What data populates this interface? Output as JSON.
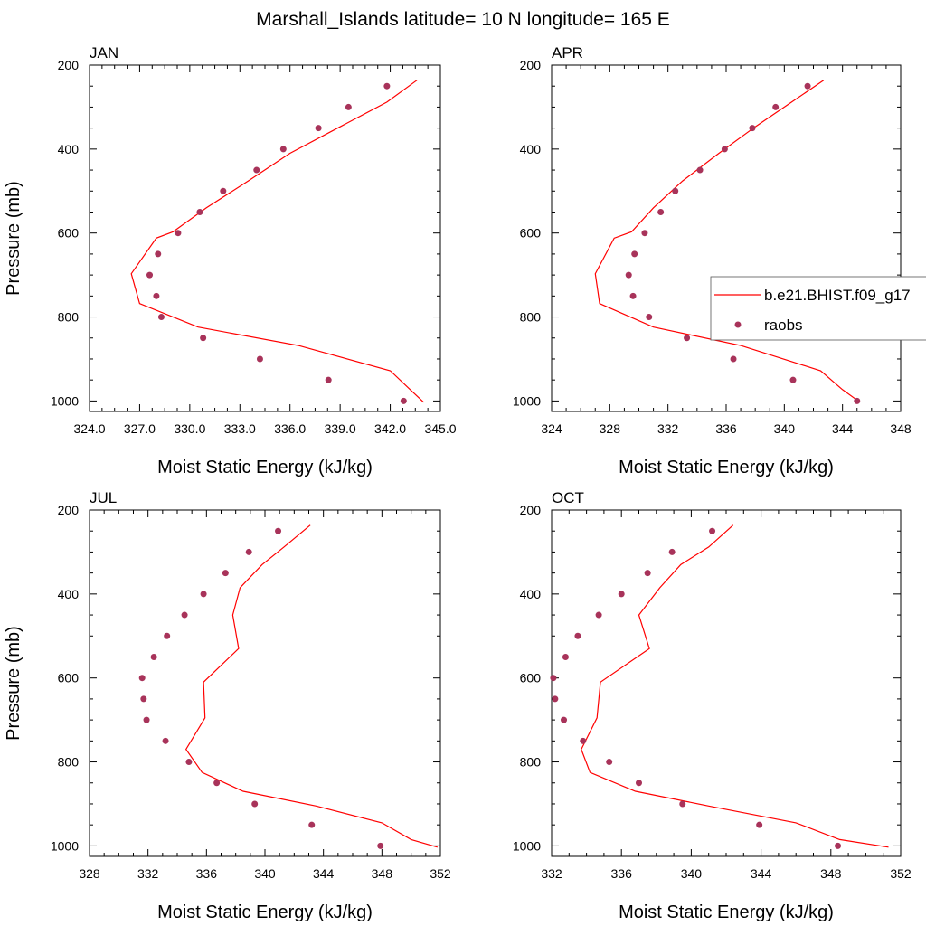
{
  "title": "Marshall_Islands  latitude= 10 N longitude= 165 E",
  "chart_data": [
    {
      "type": "line",
      "panel": "JAN",
      "xlabel": "Moist Static Energy (kJ/kg)",
      "ylabel": "Pressure (mb)",
      "xlim": [
        324,
        345
      ],
      "ylim": [
        1025,
        200
      ],
      "xticks": [
        324,
        327,
        330,
        333,
        336,
        339,
        342,
        345
      ],
      "xtick_labels": [
        "324.0",
        "327.0",
        "330.0",
        "333.0",
        "336.0",
        "339.0",
        "342.0",
        "345.0"
      ],
      "yticks": [
        200,
        400,
        600,
        800,
        1000
      ],
      "ytick_labels": [
        "200",
        "400",
        "600",
        "800",
        "1000"
      ],
      "model": {
        "x": [
          343.6,
          341.8,
          339.0,
          336.0,
          333.5,
          331.0,
          329.0,
          328.0,
          326.5,
          327.0,
          330.5,
          336.5,
          342.0,
          343.2,
          344.0
        ],
        "p": [
          236,
          288,
          347,
          410,
          476,
          540,
          597,
          612,
          697,
          768,
          824,
          868,
          928,
          973,
          1003
        ]
      },
      "raobs": {
        "x": [
          341.8,
          339.5,
          337.7,
          335.6,
          334.0,
          332.0,
          330.6,
          329.3,
          328.1,
          327.6,
          328.0,
          328.3,
          330.8,
          334.2,
          338.3,
          342.8
        ],
        "p": [
          250,
          300,
          350,
          400,
          450,
          500,
          550,
          600,
          650,
          700,
          750,
          800,
          850,
          900,
          950,
          1000
        ]
      },
      "legend": false
    },
    {
      "type": "line",
      "panel": "APR",
      "xlabel": "Moist Static Energy (kJ/kg)",
      "ylabel": "",
      "xlim": [
        324,
        348
      ],
      "ylim": [
        1025,
        200
      ],
      "xticks": [
        324,
        328,
        332,
        336,
        340,
        344,
        348
      ],
      "xtick_labels": [
        "324",
        "328",
        "332",
        "336",
        "340",
        "344",
        "348"
      ],
      "yticks": [
        200,
        400,
        600,
        800,
        1000
      ],
      "ytick_labels": [
        "200",
        "400",
        "600",
        "800",
        "1000"
      ],
      "model": {
        "x": [
          342.7,
          340.5,
          338.0,
          335.5,
          333.0,
          331.0,
          329.5,
          328.3,
          327.0,
          327.3,
          331.0,
          337.0,
          342.5,
          344.0,
          345.2
        ],
        "p": [
          236,
          288,
          347,
          410,
          476,
          540,
          597,
          612,
          697,
          768,
          824,
          868,
          928,
          973,
          1003
        ]
      },
      "raobs": {
        "x": [
          341.6,
          339.4,
          337.8,
          335.9,
          334.2,
          332.5,
          331.5,
          330.4,
          329.7,
          329.3,
          329.6,
          330.7,
          333.3,
          336.5,
          340.6,
          345.0
        ],
        "p": [
          250,
          300,
          350,
          400,
          450,
          500,
          550,
          600,
          650,
          700,
          750,
          800,
          850,
          900,
          950,
          1000
        ]
      },
      "legend": true
    },
    {
      "type": "line",
      "panel": "JUL",
      "xlabel": "Moist Static Energy (kJ/kg)",
      "ylabel": "Pressure (mb)",
      "xlim": [
        328,
        352
      ],
      "ylim": [
        1025,
        200
      ],
      "xticks": [
        328,
        332,
        336,
        340,
        344,
        348,
        352
      ],
      "xtick_labels": [
        "328",
        "332",
        "336",
        "340",
        "344",
        "348",
        "352"
      ],
      "yticks": [
        200,
        400,
        600,
        800,
        1000
      ],
      "ytick_labels": [
        "200",
        "400",
        "600",
        "800",
        "1000"
      ],
      "model": {
        "x": [
          343.1,
          341.3,
          339.8,
          338.3,
          337.8,
          338.2,
          335.8,
          335.9,
          334.6,
          335.7,
          338.5,
          343.5,
          348.0,
          350.0,
          351.8
        ],
        "p": [
          236,
          288,
          330,
          385,
          450,
          530,
          610,
          695,
          770,
          825,
          870,
          905,
          945,
          985,
          1003
        ]
      },
      "raobs": {
        "x": [
          340.9,
          338.9,
          337.3,
          335.8,
          334.5,
          333.3,
          332.4,
          331.6,
          331.7,
          331.9,
          333.2,
          334.8,
          336.7,
          339.3,
          343.2,
          347.9
        ],
        "p": [
          250,
          300,
          350,
          400,
          450,
          500,
          550,
          600,
          650,
          700,
          750,
          800,
          850,
          900,
          950,
          1000
        ]
      },
      "legend": false
    },
    {
      "type": "line",
      "panel": "OCT",
      "xlabel": "Moist Static Energy (kJ/kg)",
      "ylabel": "",
      "xlim": [
        332,
        352
      ],
      "ylim": [
        1025,
        200
      ],
      "xticks": [
        332,
        336,
        340,
        344,
        348,
        352
      ],
      "xtick_labels": [
        "332",
        "336",
        "340",
        "344",
        "348",
        "352"
      ],
      "yticks": [
        200,
        400,
        600,
        800,
        1000
      ],
      "ytick_labels": [
        "200",
        "400",
        "600",
        "800",
        "1000"
      ],
      "model": {
        "x": [
          342.4,
          341.0,
          339.4,
          338.2,
          337.0,
          337.6,
          334.8,
          334.6,
          333.7,
          334.2,
          336.8,
          341.0,
          346.0,
          348.5,
          351.3
        ],
        "p": [
          236,
          288,
          330,
          385,
          450,
          530,
          610,
          695,
          770,
          825,
          870,
          905,
          945,
          985,
          1003
        ]
      },
      "raobs": {
        "x": [
          341.2,
          338.9,
          337.5,
          336.0,
          334.7,
          333.5,
          332.8,
          332.1,
          332.2,
          332.7,
          333.8,
          335.3,
          337.0,
          339.5,
          343.9,
          348.4
        ],
        "p": [
          250,
          300,
          350,
          400,
          450,
          500,
          550,
          600,
          650,
          700,
          750,
          800,
          850,
          900,
          950,
          1000
        ]
      },
      "legend": false
    }
  ],
  "legend": {
    "entries": [
      {
        "label": "b.e21.BHIST.f09_g17",
        "marker": "line",
        "color": "#ff0000"
      },
      {
        "label": "raobs",
        "marker": "dot",
        "color": "#a8335a"
      }
    ]
  },
  "colors": {
    "model": "#ff0000",
    "raobs": "#a8335a"
  }
}
